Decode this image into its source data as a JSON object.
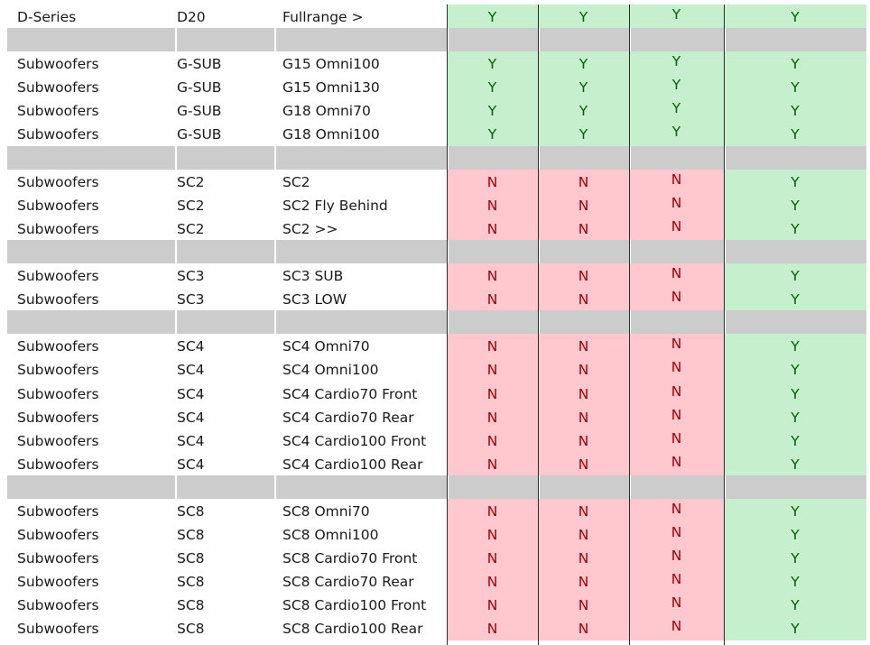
{
  "colors": {
    "separator": "#cccccc",
    "yes_fill": "#c6efce",
    "yes_text": "#006100",
    "no_fill": "#ffc7ce",
    "no_text": "#9c0006"
  },
  "rows": [
    {
      "type": "data",
      "category": "D-Series",
      "series": "D20",
      "model": "Fullrange >",
      "values": [
        "Y",
        "Y",
        "Y",
        "Y"
      ]
    },
    {
      "type": "separator"
    },
    {
      "type": "data",
      "category": "Subwoofers",
      "series": "G-SUB",
      "model": "G15 Omni100",
      "values": [
        "Y",
        "Y",
        "Y",
        "Y"
      ]
    },
    {
      "type": "data",
      "category": "Subwoofers",
      "series": "G-SUB",
      "model": "G15 Omni130",
      "values": [
        "Y",
        "Y",
        "Y",
        "Y"
      ]
    },
    {
      "type": "data",
      "category": "Subwoofers",
      "series": "G-SUB",
      "model": "G18 Omni70",
      "values": [
        "Y",
        "Y",
        "Y",
        "Y"
      ]
    },
    {
      "type": "data",
      "category": "Subwoofers",
      "series": "G-SUB",
      "model": "G18 Omni100",
      "values": [
        "Y",
        "Y",
        "Y",
        "Y"
      ]
    },
    {
      "type": "separator"
    },
    {
      "type": "data",
      "category": "Subwoofers",
      "series": "SC2",
      "model": "SC2",
      "values": [
        "N",
        "N",
        "N",
        "Y"
      ]
    },
    {
      "type": "data",
      "category": "Subwoofers",
      "series": "SC2",
      "model": "SC2 Fly Behind",
      "values": [
        "N",
        "N",
        "N",
        "Y"
      ]
    },
    {
      "type": "data",
      "category": "Subwoofers",
      "series": "SC2",
      "model": "SC2 >>",
      "values": [
        "N",
        "N",
        "N",
        "Y"
      ]
    },
    {
      "type": "separator"
    },
    {
      "type": "data",
      "category": "Subwoofers",
      "series": "SC3",
      "model": "SC3 SUB",
      "values": [
        "N",
        "N",
        "N",
        "Y"
      ]
    },
    {
      "type": "data",
      "category": "Subwoofers",
      "series": "SC3",
      "model": "SC3 LOW",
      "values": [
        "N",
        "N",
        "N",
        "Y"
      ]
    },
    {
      "type": "separator"
    },
    {
      "type": "data",
      "category": "Subwoofers",
      "series": "SC4",
      "model": "SC4 Omni70",
      "values": [
        "N",
        "N",
        "N",
        "Y"
      ]
    },
    {
      "type": "data",
      "category": "Subwoofers",
      "series": "SC4",
      "model": "SC4 Omni100",
      "values": [
        "N",
        "N",
        "N",
        "Y"
      ]
    },
    {
      "type": "data",
      "category": "Subwoofers",
      "series": "SC4",
      "model": "SC4 Cardio70 Front",
      "values": [
        "N",
        "N",
        "N",
        "Y"
      ]
    },
    {
      "type": "data",
      "category": "Subwoofers",
      "series": "SC4",
      "model": "SC4 Cardio70 Rear",
      "values": [
        "N",
        "N",
        "N",
        "Y"
      ]
    },
    {
      "type": "data",
      "category": "Subwoofers",
      "series": "SC4",
      "model": "SC4 Cardio100 Front",
      "values": [
        "N",
        "N",
        "N",
        "Y"
      ]
    },
    {
      "type": "data",
      "category": "Subwoofers",
      "series": "SC4",
      "model": "SC4 Cardio100 Rear",
      "values": [
        "N",
        "N",
        "N",
        "Y"
      ]
    },
    {
      "type": "separator"
    },
    {
      "type": "data",
      "category": "Subwoofers",
      "series": "SC8",
      "model": "SC8 Omni70",
      "values": [
        "N",
        "N",
        "N",
        "Y"
      ]
    },
    {
      "type": "data",
      "category": "Subwoofers",
      "series": "SC8",
      "model": "SC8 Omni100",
      "values": [
        "N",
        "N",
        "N",
        "Y"
      ]
    },
    {
      "type": "data",
      "category": "Subwoofers",
      "series": "SC8",
      "model": "SC8 Cardio70 Front",
      "values": [
        "N",
        "N",
        "N",
        "Y"
      ]
    },
    {
      "type": "data",
      "category": "Subwoofers",
      "series": "SC8",
      "model": "SC8 Cardio70 Rear",
      "values": [
        "N",
        "N",
        "N",
        "Y"
      ]
    },
    {
      "type": "data",
      "category": "Subwoofers",
      "series": "SC8",
      "model": "SC8 Cardio100 Front",
      "values": [
        "N",
        "N",
        "N",
        "Y"
      ]
    },
    {
      "type": "data",
      "category": "Subwoofers",
      "series": "SC8",
      "model": "SC8 Cardio100 Rear",
      "values": [
        "N",
        "N",
        "N",
        "Y"
      ]
    }
  ]
}
